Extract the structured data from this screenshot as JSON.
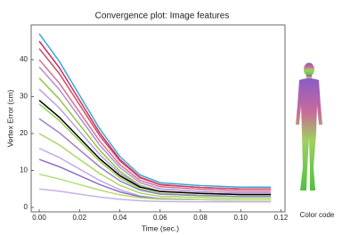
{
  "chart_data": {
    "type": "line",
    "title": "Convergence plot: Image features",
    "xlabel": "Time (sec.)",
    "ylabel": "Vertex Error (cm)",
    "side_label": "Color code",
    "x": [
      0,
      0.01,
      0.02,
      0.03,
      0.04,
      0.05,
      0.06,
      0.08,
      0.1,
      0.115
    ],
    "xlim": [
      -0.004,
      0.122
    ],
    "xticks": [
      {
        "value": 0,
        "label": "0.00"
      },
      {
        "value": 0.02,
        "label": "0.02"
      },
      {
        "value": 0.04,
        "label": "0.04"
      },
      {
        "value": 0.06,
        "label": "0.06"
      },
      {
        "value": 0.08,
        "label": "0.08"
      },
      {
        "value": 0.1,
        "label": "0.10"
      },
      {
        "value": 0.12,
        "label": "0.12"
      }
    ],
    "ylim": [
      -1.2,
      49.4
    ],
    "yticks": [
      0,
      10,
      20,
      30,
      40
    ],
    "series": [
      {
        "color": "#3aa7d8",
        "values": [
          47,
          39.5,
          30.4,
          21.3,
          13.8,
          8.8,
          6.7,
          5.9,
          5.5,
          5.5
        ]
      },
      {
        "color": "#c8305a",
        "values": [
          45,
          37.8,
          29,
          20.2,
          13,
          8.2,
          6.2,
          5.4,
          5,
          5
        ]
      },
      {
        "color": "#d04a6a",
        "values": [
          43,
          36.2,
          27.8,
          19.4,
          12.6,
          8,
          6.1,
          5.4,
          5,
          5
        ]
      },
      {
        "color": "#d87090",
        "values": [
          40,
          33.6,
          25.8,
          18,
          11.6,
          7.3,
          5.6,
          4.9,
          4.5,
          4.5
        ]
      },
      {
        "color": "#b090d0",
        "values": [
          38,
          31.9,
          24.4,
          16.9,
          10.8,
          6.7,
          5,
          4.3,
          4,
          4
        ]
      },
      {
        "color": "#8cc840",
        "values": [
          35,
          29.3,
          22.4,
          15.5,
          9.8,
          6,
          4.4,
          3.8,
          3.5,
          3.5
        ]
      },
      {
        "color": "#b8a0e0",
        "values": [
          32,
          26.9,
          20.6,
          14.3,
          9.2,
          5.8,
          4.4,
          3.8,
          3.5,
          3.5
        ]
      },
      {
        "color": "#9ad050",
        "values": [
          28,
          23.5,
          18,
          12.5,
          8,
          5,
          3.8,
          3.3,
          3,
          3
        ]
      },
      {
        "color": "#9c80c8",
        "values": [
          24,
          20.2,
          15.6,
          11,
          7.2,
          4.7,
          3.6,
          3.2,
          3,
          3
        ]
      },
      {
        "color": "#a8d860",
        "values": [
          20,
          16.9,
          13,
          9.2,
          6,
          3.9,
          3,
          2.7,
          2.5,
          2.5
        ]
      },
      {
        "color": "#c0a8e8",
        "values": [
          16,
          13.5,
          10.4,
          7.3,
          4.8,
          3.1,
          2.4,
          2.1,
          2,
          2
        ]
      },
      {
        "color": "#9070c0",
        "values": [
          13,
          11,
          8.6,
          6.2,
          4.2,
          2.9,
          2.3,
          2.1,
          2,
          2
        ]
      },
      {
        "color": "#b0e070",
        "values": [
          9,
          7.7,
          6.2,
          4.7,
          3.4,
          2.6,
          2.2,
          2.1,
          2,
          2
        ]
      },
      {
        "color": "#c8b0e8",
        "values": [
          5,
          4.4,
          3.6,
          2.8,
          2.2,
          1.8,
          1.6,
          1.5,
          1.5,
          1.5
        ]
      },
      {
        "color": "#000000",
        "values": [
          29,
          24.4,
          18.8,
          13.2,
          8.6,
          5.5,
          4.3,
          3.8,
          3.5,
          3.5
        ]
      }
    ]
  }
}
